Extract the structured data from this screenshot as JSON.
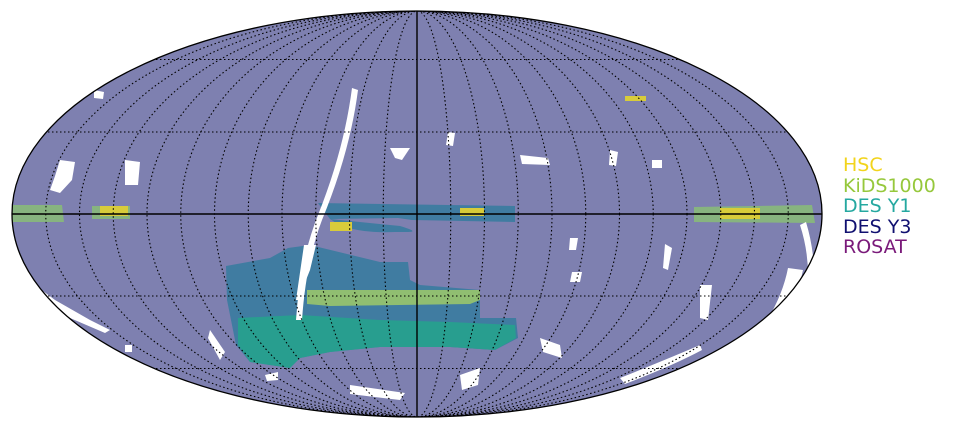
{
  "colors": {
    "background": "#7e80b0",
    "outline": "#000000",
    "graticule": "#000000",
    "mask_holes": "#ffffff"
  },
  "legend": {
    "items": [
      {
        "label": "HSC",
        "color": "#f2d41c"
      },
      {
        "label": "KiDS1000",
        "color": "#96c83c"
      },
      {
        "label": "DES Y1",
        "color": "#25a8a0"
      },
      {
        "label": "DES Y3",
        "color": "#101070"
      },
      {
        "label": "ROSAT",
        "color": "#7a1a7a"
      }
    ]
  },
  "footprints": {
    "des_y3": "#3d7ba0",
    "des_y1": "#27a08e",
    "kids": "#95c26f",
    "hsc": "#d8cc3a",
    "kids_equatorial": "#88b67c"
  }
}
